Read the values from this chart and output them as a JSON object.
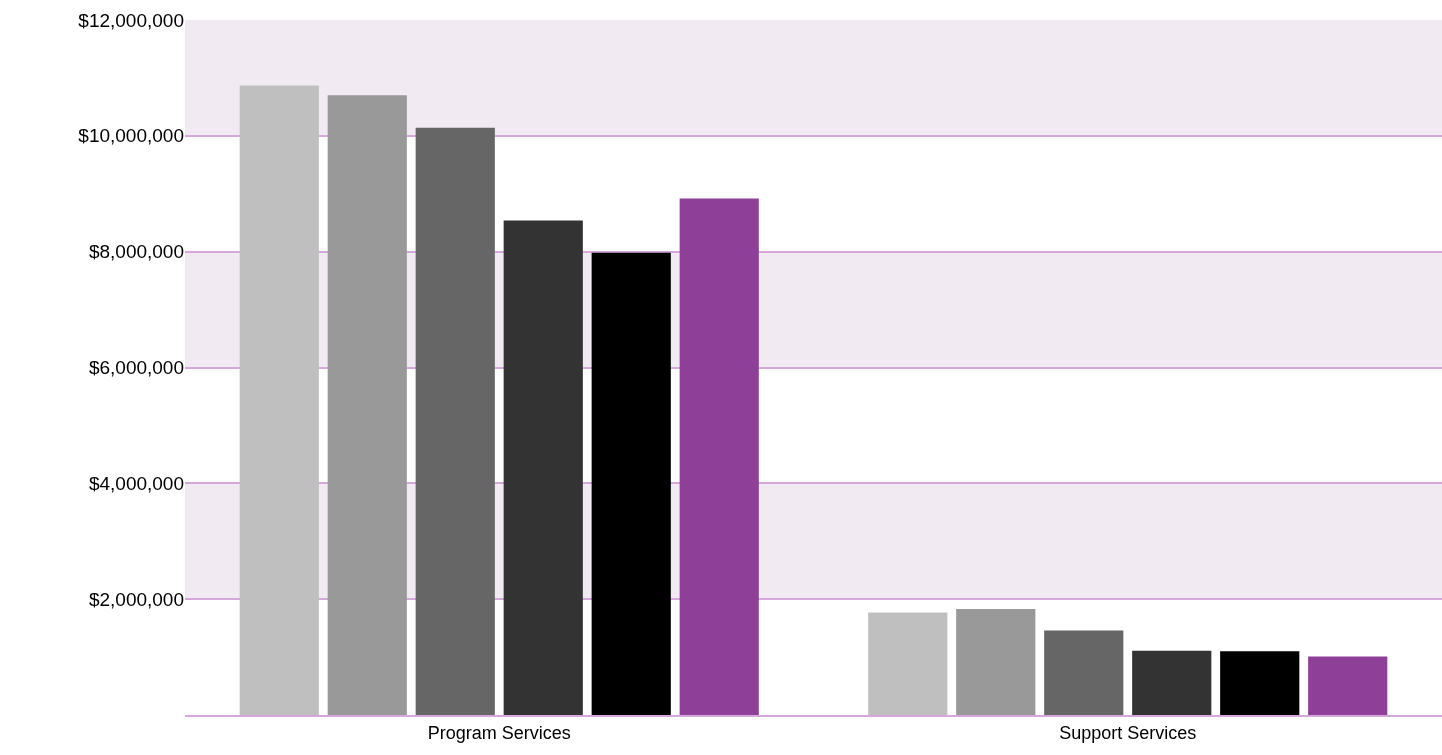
{
  "chart_data": {
    "type": "bar",
    "categories": [
      "Program Services",
      "Support Services"
    ],
    "series": [
      {
        "color": "#bfbfbf",
        "values": [
          10870000,
          1770000
        ]
      },
      {
        "color": "#999999",
        "values": [
          10700000,
          1830000
        ]
      },
      {
        "color": "#666666",
        "values": [
          10140000,
          1460000
        ]
      },
      {
        "color": "#333333",
        "values": [
          8540000,
          1110000
        ]
      },
      {
        "color": "#000000",
        "values": [
          7980000,
          1100000
        ]
      },
      {
        "color": "#8e4098",
        "values": [
          8920000,
          1010000
        ]
      }
    ],
    "ylim": [
      0,
      12000000
    ],
    "yticks": [
      {
        "value": 2000000,
        "label": "$2,000,000"
      },
      {
        "value": 4000000,
        "label": "$4,000,000"
      },
      {
        "value": 6000000,
        "label": "$6,000,000"
      },
      {
        "value": 8000000,
        "label": "$8,000,000"
      },
      {
        "value": 10000000,
        "label": "$10,000,000"
      },
      {
        "value": 12000000,
        "label": "$12,000,000"
      }
    ],
    "bands": [
      {
        "axis": "y",
        "from": 10000000,
        "to": 12000000,
        "color": "#f2eaf3"
      },
      {
        "axis": "y",
        "from": 6000000,
        "to": 8000000,
        "color": "#f2eaf3"
      },
      {
        "axis": "y",
        "from": 2000000,
        "to": 4000000,
        "color": "#f2eaf3"
      }
    ],
    "grid": "y"
  }
}
